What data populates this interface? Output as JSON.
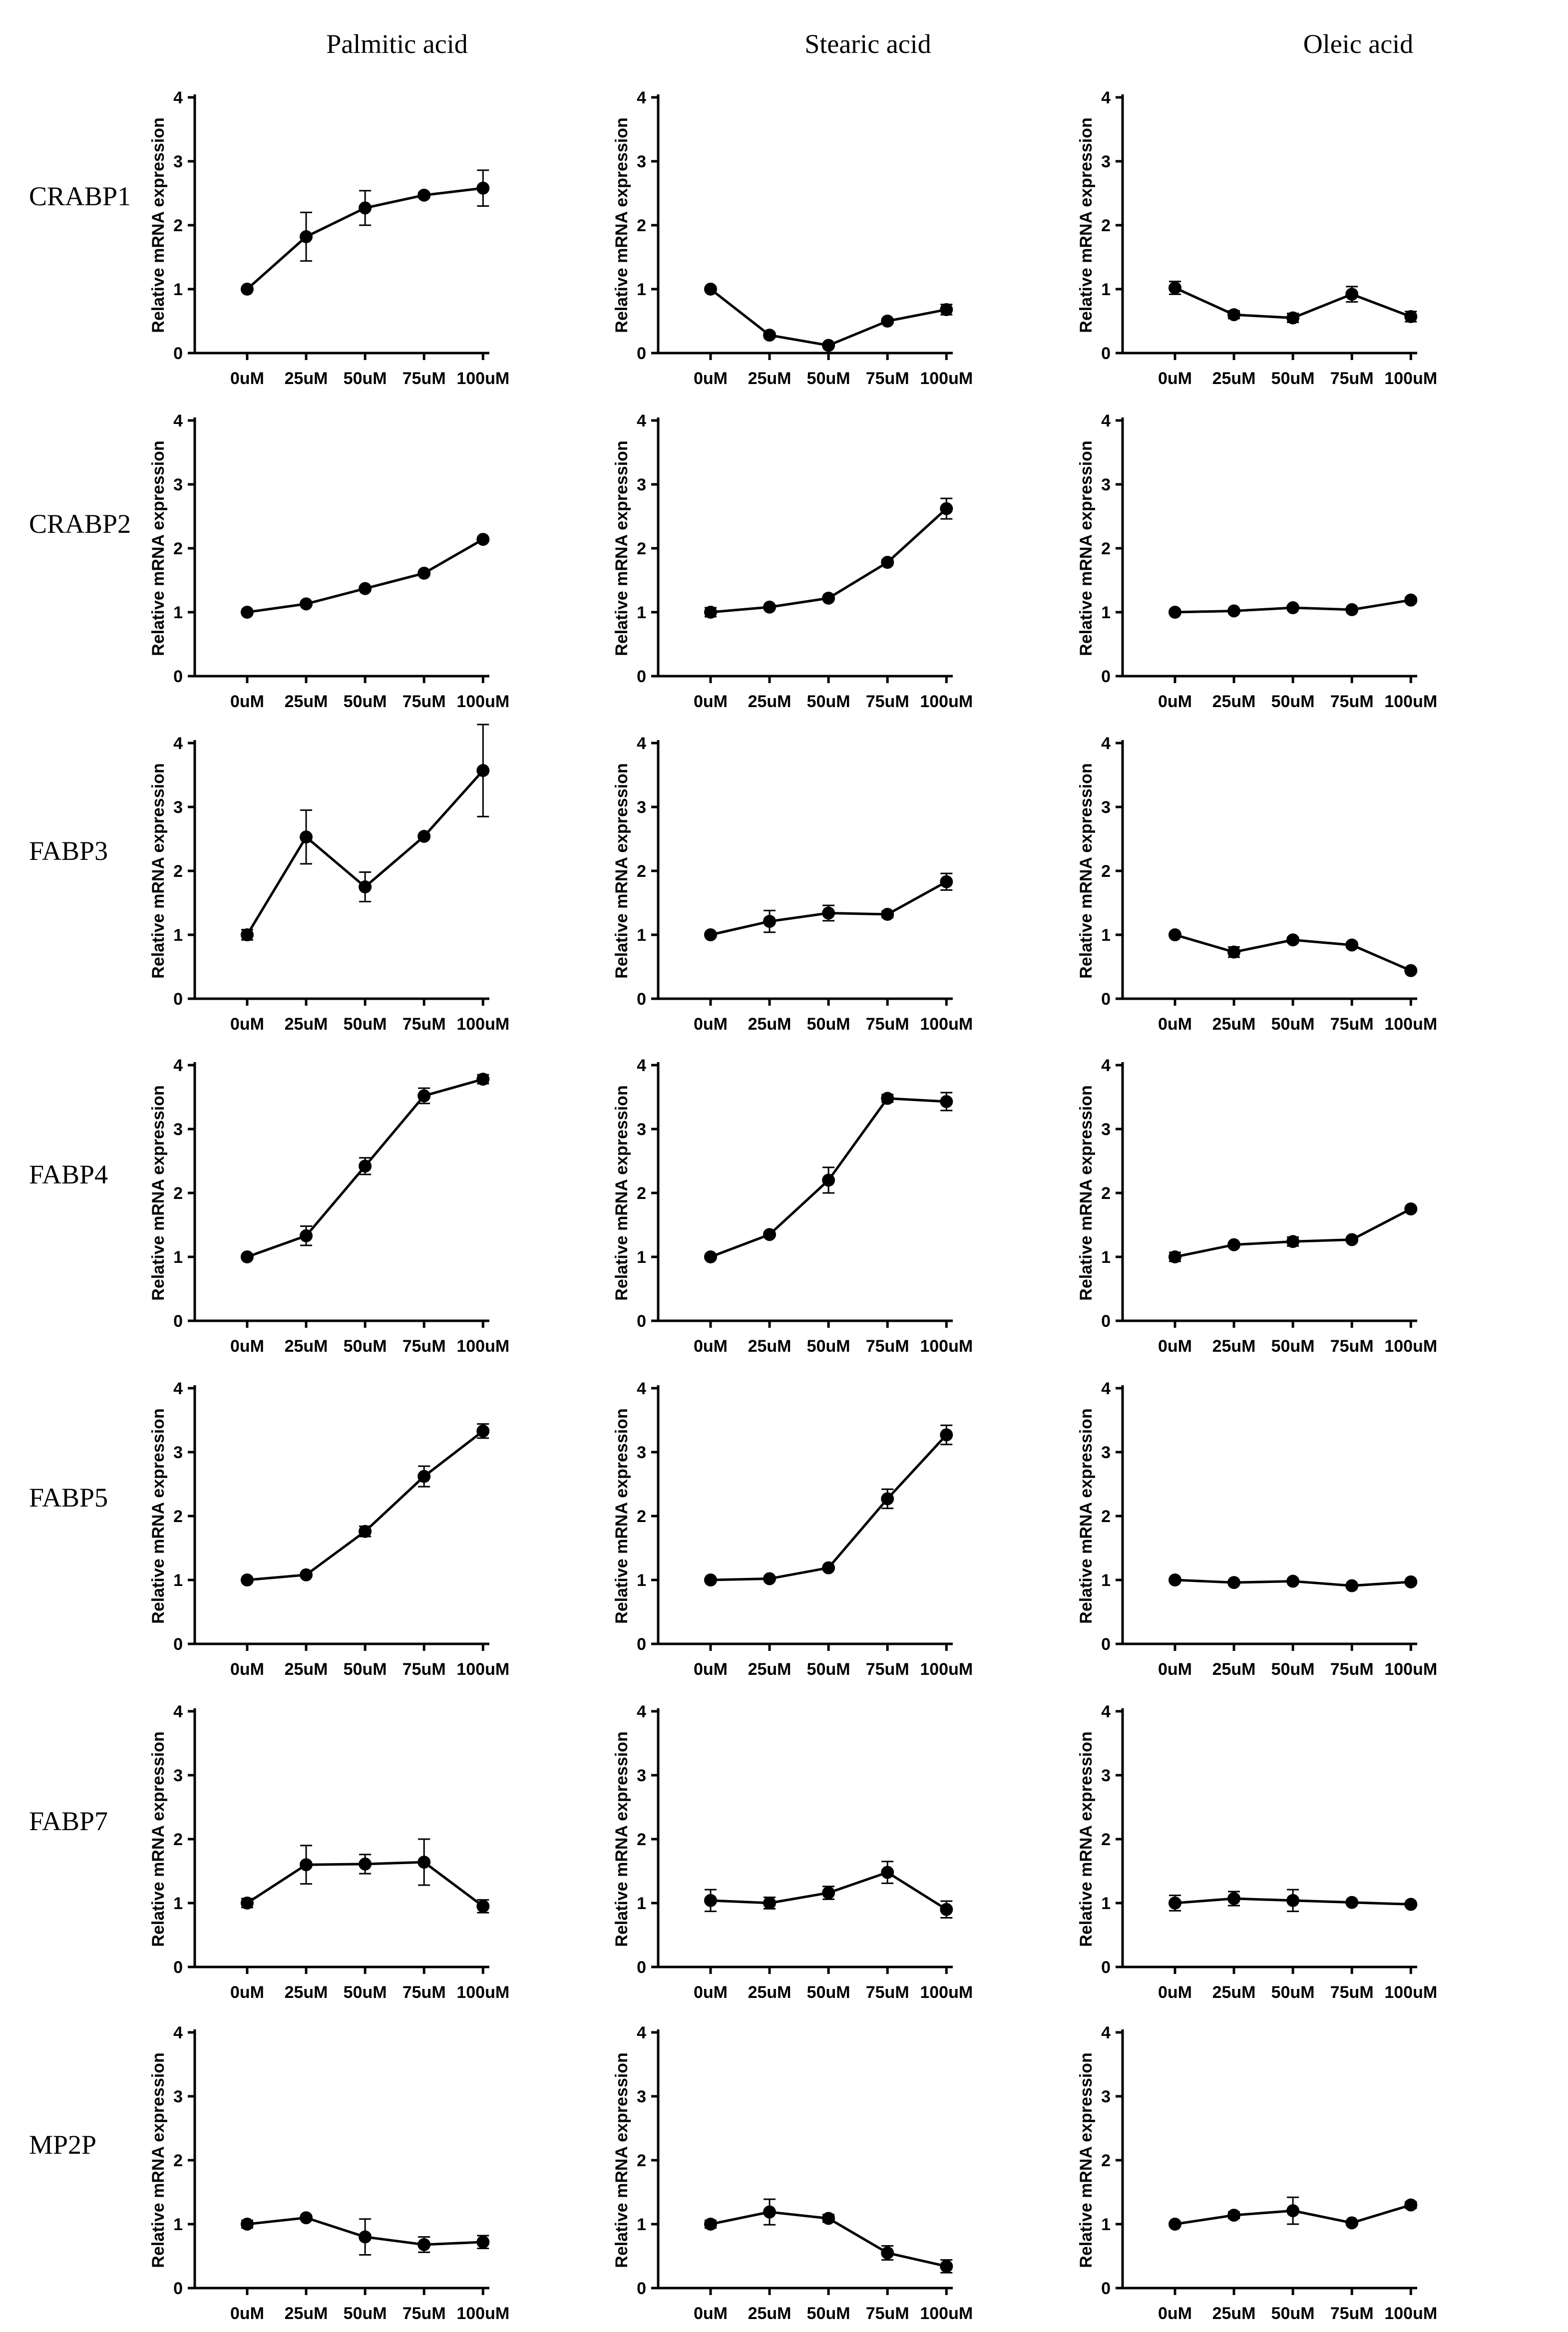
{
  "figure": {
    "column_titles": [
      "Palmitic acid",
      "Stearic acid",
      "Oleic acid"
    ],
    "row_labels": [
      "CRABP1",
      "CRABP2",
      "FABP3",
      "FABP4",
      "FABP5",
      "FABP7",
      "MP2P"
    ]
  },
  "chart_data": [
    {
      "type": "line",
      "gene": "CRABP1",
      "treatment": "Palmitic acid",
      "categories": [
        "0uM",
        "25uM",
        "50uM",
        "75uM",
        "100uM"
      ],
      "values": [
        1.0,
        1.82,
        2.27,
        2.47,
        2.58
      ],
      "errors": [
        0.03,
        0.38,
        0.27,
        0.04,
        0.28
      ],
      "ylabel": "Relative mRNA expression",
      "ylim": [
        0,
        4
      ],
      "yticks": [
        0,
        1,
        2,
        3,
        4
      ]
    },
    {
      "type": "line",
      "gene": "CRABP1",
      "treatment": "Stearic acid",
      "categories": [
        "0uM",
        "25uM",
        "50uM",
        "75uM",
        "100uM"
      ],
      "values": [
        1.0,
        0.28,
        0.12,
        0.5,
        0.68
      ],
      "errors": [
        0.03,
        0.04,
        0.03,
        0.04,
        0.08
      ],
      "ylabel": "Relative mRNA expression",
      "ylim": [
        0,
        4
      ],
      "yticks": [
        0,
        1,
        2,
        3,
        4
      ]
    },
    {
      "type": "line",
      "gene": "CRABP1",
      "treatment": "Oleic acid",
      "categories": [
        "0uM",
        "25uM",
        "50uM",
        "75uM",
        "100uM"
      ],
      "values": [
        1.02,
        0.6,
        0.55,
        0.92,
        0.57
      ],
      "errors": [
        0.1,
        0.06,
        0.07,
        0.12,
        0.08
      ],
      "ylabel": "Relative mRNA expression",
      "ylim": [
        0,
        4
      ],
      "yticks": [
        0,
        1,
        2,
        3,
        4
      ]
    },
    {
      "type": "line",
      "gene": "CRABP2",
      "treatment": "Palmitic acid",
      "categories": [
        "0uM",
        "25uM",
        "50uM",
        "75uM",
        "100uM"
      ],
      "values": [
        1.0,
        1.13,
        1.37,
        1.61,
        2.14
      ],
      "errors": [
        0.02,
        0.03,
        0.03,
        0.03,
        0.03
      ],
      "ylabel": "Relative mRNA expression",
      "ylim": [
        0,
        4
      ],
      "yticks": [
        0,
        1,
        2,
        3,
        4
      ]
    },
    {
      "type": "line",
      "gene": "CRABP2",
      "treatment": "Stearic acid",
      "categories": [
        "0uM",
        "25uM",
        "50uM",
        "75uM",
        "100uM"
      ],
      "values": [
        1.0,
        1.08,
        1.22,
        1.78,
        2.62
      ],
      "errors": [
        0.07,
        0.03,
        0.03,
        0.04,
        0.16
      ],
      "ylabel": "Relative mRNA expression",
      "ylim": [
        0,
        4
      ],
      "yticks": [
        0,
        1,
        2,
        3,
        4
      ]
    },
    {
      "type": "line",
      "gene": "CRABP2",
      "treatment": "Oleic acid",
      "categories": [
        "0uM",
        "25uM",
        "50uM",
        "75uM",
        "100uM"
      ],
      "values": [
        1.0,
        1.02,
        1.07,
        1.04,
        1.19
      ],
      "errors": [
        0.02,
        0.02,
        0.03,
        0.02,
        0.04
      ],
      "ylabel": "Relative mRNA expression",
      "ylim": [
        0,
        4
      ],
      "yticks": [
        0,
        1,
        2,
        3,
        4
      ]
    },
    {
      "type": "line",
      "gene": "FABP3",
      "treatment": "Palmitic acid",
      "categories": [
        "0uM",
        "25uM",
        "50uM",
        "75uM",
        "100uM"
      ],
      "values": [
        1.0,
        2.53,
        1.75,
        2.54,
        3.57
      ],
      "errors": [
        0.08,
        0.42,
        0.23,
        0.03,
        0.72
      ],
      "ylabel": "Relative mRNA expression",
      "ylim": [
        0,
        4
      ],
      "yticks": [
        0,
        1,
        2,
        3,
        4
      ]
    },
    {
      "type": "line",
      "gene": "FABP3",
      "treatment": "Stearic acid",
      "categories": [
        "0uM",
        "25uM",
        "50uM",
        "75uM",
        "100uM"
      ],
      "values": [
        1.0,
        1.21,
        1.34,
        1.32,
        1.83
      ],
      "errors": [
        0.03,
        0.17,
        0.12,
        0.05,
        0.13
      ],
      "ylabel": "Relative mRNA expression",
      "ylim": [
        0,
        4
      ],
      "yticks": [
        0,
        1,
        2,
        3,
        4
      ]
    },
    {
      "type": "line",
      "gene": "FABP3",
      "treatment": "Oleic acid",
      "categories": [
        "0uM",
        "25uM",
        "50uM",
        "75uM",
        "100uM"
      ],
      "values": [
        1.0,
        0.73,
        0.92,
        0.84,
        0.44
      ],
      "errors": [
        0.03,
        0.08,
        0.04,
        0.04,
        0.03
      ],
      "ylabel": "Relative mRNA expression",
      "ylim": [
        0,
        4
      ],
      "yticks": [
        0,
        1,
        2,
        3,
        4
      ]
    },
    {
      "type": "line",
      "gene": "FABP4",
      "treatment": "Palmitic acid",
      "categories": [
        "0uM",
        "25uM",
        "50uM",
        "75uM",
        "100uM"
      ],
      "values": [
        1.0,
        1.33,
        2.42,
        3.52,
        3.78
      ],
      "errors": [
        0.02,
        0.15,
        0.13,
        0.12,
        0.07
      ],
      "ylabel": "Relative mRNA expression",
      "ylim": [
        0,
        4
      ],
      "yticks": [
        0,
        1,
        2,
        3,
        4
      ]
    },
    {
      "type": "line",
      "gene": "FABP4",
      "treatment": "Stearic acid",
      "categories": [
        "0uM",
        "25uM",
        "50uM",
        "75uM",
        "100uM"
      ],
      "values": [
        1.0,
        1.35,
        2.2,
        3.48,
        3.43
      ],
      "errors": [
        0.02,
        0.03,
        0.2,
        0.06,
        0.14
      ],
      "ylabel": "Relative mRNA expression",
      "ylim": [
        0,
        4
      ],
      "yticks": [
        0,
        1,
        2,
        3,
        4
      ]
    },
    {
      "type": "line",
      "gene": "FABP4",
      "treatment": "Oleic acid",
      "categories": [
        "0uM",
        "25uM",
        "50uM",
        "75uM",
        "100uM"
      ],
      "values": [
        1.0,
        1.19,
        1.24,
        1.27,
        1.75
      ],
      "errors": [
        0.07,
        0.03,
        0.07,
        0.03,
        0.03
      ],
      "ylabel": "Relative mRNA expression",
      "ylim": [
        0,
        4
      ],
      "yticks": [
        0,
        1,
        2,
        3,
        4
      ]
    },
    {
      "type": "line",
      "gene": "FABP5",
      "treatment": "Palmitic acid",
      "categories": [
        "0uM",
        "25uM",
        "50uM",
        "75uM",
        "100uM"
      ],
      "values": [
        1.0,
        1.08,
        1.76,
        2.62,
        3.33
      ],
      "errors": [
        0.02,
        0.03,
        0.08,
        0.16,
        0.11
      ],
      "ylabel": "Relative mRNA expression",
      "ylim": [
        0,
        4
      ],
      "yticks": [
        0,
        1,
        2,
        3,
        4
      ]
    },
    {
      "type": "line",
      "gene": "FABP5",
      "treatment": "Stearic acid",
      "categories": [
        "0uM",
        "25uM",
        "50uM",
        "75uM",
        "100uM"
      ],
      "values": [
        1.0,
        1.02,
        1.19,
        2.27,
        3.27
      ],
      "errors": [
        0.02,
        0.02,
        0.02,
        0.15,
        0.15
      ],
      "ylabel": "Relative mRNA expression",
      "ylim": [
        0,
        4
      ],
      "yticks": [
        0,
        1,
        2,
        3,
        4
      ]
    },
    {
      "type": "line",
      "gene": "FABP5",
      "treatment": "Oleic acid",
      "categories": [
        "0uM",
        "25uM",
        "50uM",
        "75uM",
        "100uM"
      ],
      "values": [
        1.0,
        0.96,
        0.98,
        0.91,
        0.97
      ],
      "errors": [
        0.02,
        0.02,
        0.02,
        0.02,
        0.02
      ],
      "ylabel": "Relative mRNA expression",
      "ylim": [
        0,
        4
      ],
      "yticks": [
        0,
        1,
        2,
        3,
        4
      ]
    },
    {
      "type": "line",
      "gene": "FABP7",
      "treatment": "Palmitic acid",
      "categories": [
        "0uM",
        "25uM",
        "50uM",
        "75uM",
        "100uM"
      ],
      "values": [
        1.0,
        1.6,
        1.61,
        1.64,
        0.95
      ],
      "errors": [
        0.07,
        0.3,
        0.15,
        0.36,
        0.1
      ],
      "ylabel": "Relative mRNA expression",
      "ylim": [
        0,
        4
      ],
      "yticks": [
        0,
        1,
        2,
        3,
        4
      ]
    },
    {
      "type": "line",
      "gene": "FABP7",
      "treatment": "Stearic acid",
      "categories": [
        "0uM",
        "25uM",
        "50uM",
        "75uM",
        "100uM"
      ],
      "values": [
        1.04,
        1.0,
        1.16,
        1.48,
        0.9
      ],
      "errors": [
        0.17,
        0.09,
        0.1,
        0.17,
        0.13
      ],
      "ylabel": "Relative mRNA expression",
      "ylim": [
        0,
        4
      ],
      "yticks": [
        0,
        1,
        2,
        3,
        4
      ]
    },
    {
      "type": "line",
      "gene": "FABP7",
      "treatment": "Oleic acid",
      "categories": [
        "0uM",
        "25uM",
        "50uM",
        "75uM",
        "100uM"
      ],
      "values": [
        1.0,
        1.07,
        1.04,
        1.01,
        0.98
      ],
      "errors": [
        0.12,
        0.11,
        0.17,
        0.03,
        0.02
      ],
      "ylabel": "Relative mRNA expression",
      "ylim": [
        0,
        4
      ],
      "yticks": [
        0,
        1,
        2,
        3,
        4
      ]
    },
    {
      "type": "line",
      "gene": "MP2P",
      "treatment": "Palmitic acid",
      "categories": [
        "0uM",
        "25uM",
        "50uM",
        "75uM",
        "100uM"
      ],
      "values": [
        1.0,
        1.1,
        0.8,
        0.68,
        0.72
      ],
      "errors": [
        0.06,
        0.03,
        0.28,
        0.12,
        0.1
      ],
      "ylabel": "Relative mRNA expression",
      "ylim": [
        0,
        4
      ],
      "yticks": [
        0,
        1,
        2,
        3,
        4
      ]
    },
    {
      "type": "line",
      "gene": "MP2P",
      "treatment": "Stearic acid",
      "categories": [
        "0uM",
        "25uM",
        "50uM",
        "75uM",
        "100uM"
      ],
      "values": [
        1.0,
        1.19,
        1.09,
        0.55,
        0.34
      ],
      "errors": [
        0.06,
        0.2,
        0.06,
        0.11,
        0.1
      ],
      "ylabel": "Relative mRNA expression",
      "ylim": [
        0,
        4
      ],
      "yticks": [
        0,
        1,
        2,
        3,
        4
      ]
    },
    {
      "type": "line",
      "gene": "MP2P",
      "treatment": "Oleic acid",
      "categories": [
        "0uM",
        "25uM",
        "50uM",
        "75uM",
        "100uM"
      ],
      "values": [
        1.0,
        1.14,
        1.21,
        1.02,
        1.3
      ],
      "errors": [
        0.02,
        0.05,
        0.21,
        0.03,
        0.05
      ],
      "ylabel": "Relative mRNA expression",
      "ylim": [
        0,
        4
      ],
      "yticks": [
        0,
        1,
        2,
        3,
        4
      ]
    }
  ]
}
